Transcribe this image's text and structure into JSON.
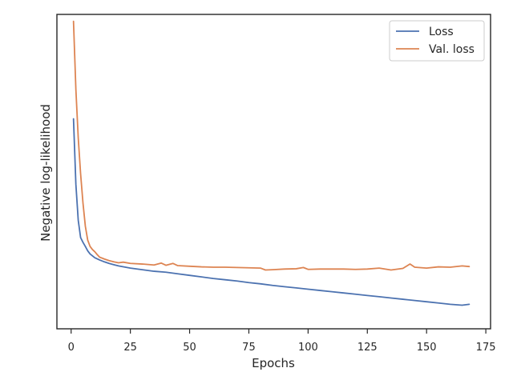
{
  "chart_data": {
    "type": "line",
    "title": "",
    "xlabel": "Epochs",
    "ylabel": "Negative log-likelihood",
    "xlim": [
      -6,
      177
    ],
    "ylim": [
      0.0,
      1.0
    ],
    "x_ticks": [
      0,
      25,
      50,
      75,
      100,
      125,
      150,
      175
    ],
    "y_ticks_shown": false,
    "grid": false,
    "legend_position": "top-right",
    "series": [
      {
        "name": "Loss",
        "color": "#4c72b0",
        "points": [
          [
            1,
            0.668
          ],
          [
            2,
            0.46
          ],
          [
            3,
            0.345
          ],
          [
            4,
            0.29
          ],
          [
            5,
            0.275
          ],
          [
            6,
            0.262
          ],
          [
            7,
            0.248
          ],
          [
            8,
            0.238
          ],
          [
            9,
            0.232
          ],
          [
            10,
            0.226
          ],
          [
            12,
            0.219
          ],
          [
            14,
            0.213
          ],
          [
            16,
            0.208
          ],
          [
            18,
            0.204
          ],
          [
            20,
            0.2
          ],
          [
            25,
            0.193
          ],
          [
            30,
            0.188
          ],
          [
            35,
            0.183
          ],
          [
            40,
            0.18
          ],
          [
            45,
            0.175
          ],
          [
            50,
            0.17
          ],
          [
            55,
            0.165
          ],
          [
            60,
            0.16
          ],
          [
            65,
            0.156
          ],
          [
            70,
            0.152
          ],
          [
            75,
            0.147
          ],
          [
            80,
            0.143
          ],
          [
            85,
            0.138
          ],
          [
            90,
            0.134
          ],
          [
            95,
            0.13
          ],
          [
            100,
            0.126
          ],
          [
            105,
            0.122
          ],
          [
            110,
            0.118
          ],
          [
            115,
            0.114
          ],
          [
            120,
            0.11
          ],
          [
            125,
            0.106
          ],
          [
            130,
            0.102
          ],
          [
            135,
            0.098
          ],
          [
            140,
            0.094
          ],
          [
            145,
            0.09
          ],
          [
            150,
            0.086
          ],
          [
            155,
            0.082
          ],
          [
            160,
            0.078
          ],
          [
            165,
            0.075
          ],
          [
            168,
            0.078
          ]
        ]
      },
      {
        "name": "Val. loss",
        "color": "#dd8452",
        "points": [
          [
            1,
            0.978
          ],
          [
            2,
            0.762
          ],
          [
            3,
            0.607
          ],
          [
            4,
            0.493
          ],
          [
            5,
            0.4
          ],
          [
            6,
            0.326
          ],
          [
            7,
            0.282
          ],
          [
            8,
            0.262
          ],
          [
            9,
            0.252
          ],
          [
            10,
            0.245
          ],
          [
            11,
            0.236
          ],
          [
            12,
            0.228
          ],
          [
            14,
            0.222
          ],
          [
            16,
            0.217
          ],
          [
            18,
            0.213
          ],
          [
            20,
            0.21
          ],
          [
            22,
            0.212
          ],
          [
            25,
            0.208
          ],
          [
            30,
            0.206
          ],
          [
            35,
            0.203
          ],
          [
            38,
            0.209
          ],
          [
            40,
            0.202
          ],
          [
            43,
            0.208
          ],
          [
            45,
            0.201
          ],
          [
            50,
            0.199
          ],
          [
            55,
            0.197
          ],
          [
            60,
            0.196
          ],
          [
            65,
            0.196
          ],
          [
            70,
            0.195
          ],
          [
            75,
            0.194
          ],
          [
            80,
            0.193
          ],
          [
            82,
            0.187
          ],
          [
            85,
            0.188
          ],
          [
            90,
            0.19
          ],
          [
            95,
            0.191
          ],
          [
            98,
            0.195
          ],
          [
            100,
            0.189
          ],
          [
            105,
            0.19
          ],
          [
            110,
            0.19
          ],
          [
            115,
            0.19
          ],
          [
            120,
            0.189
          ],
          [
            125,
            0.19
          ],
          [
            130,
            0.193
          ],
          [
            135,
            0.187
          ],
          [
            140,
            0.192
          ],
          [
            143,
            0.206
          ],
          [
            145,
            0.196
          ],
          [
            150,
            0.193
          ],
          [
            155,
            0.197
          ],
          [
            160,
            0.196
          ],
          [
            165,
            0.2
          ],
          [
            168,
            0.198
          ]
        ]
      }
    ]
  }
}
